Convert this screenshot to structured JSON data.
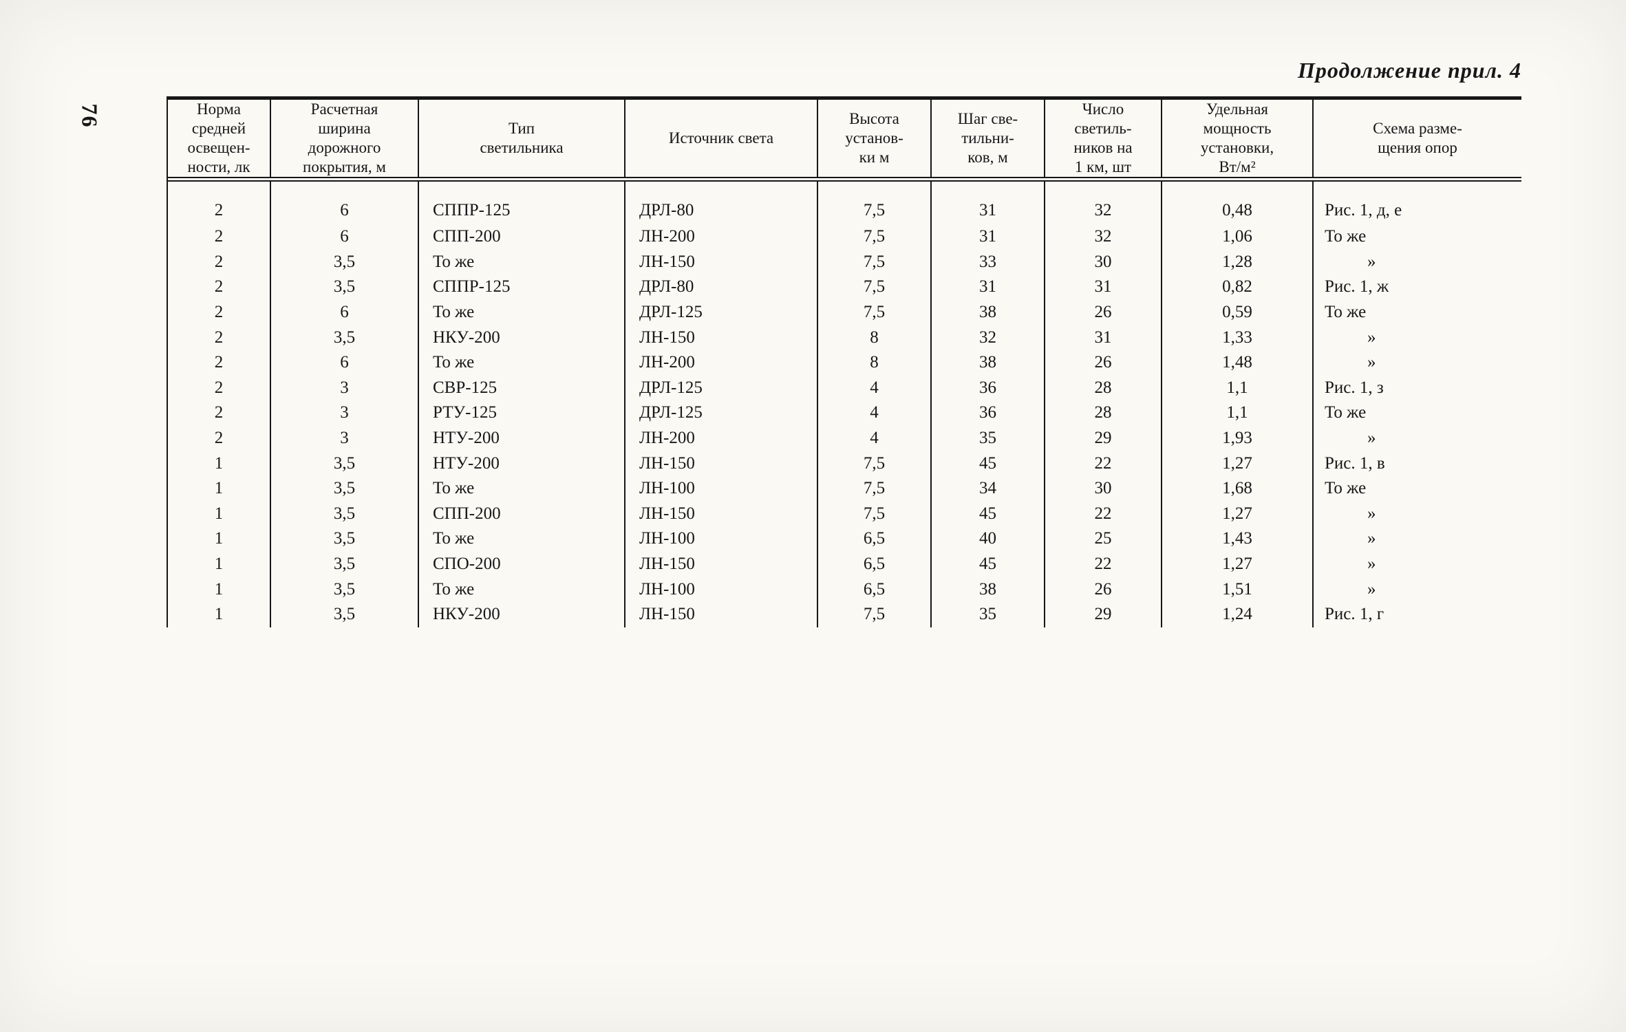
{
  "page": {
    "number": "76",
    "continuation_note": "Продолжение прил. 4"
  },
  "table": {
    "headers": [
      "Норма\nсредней\nосвещен-\nности, лк",
      "Расчетная\nширина\nдорожного\nпокрытия, м",
      "Тип\nсветильника",
      "Источник света",
      "Высота\nустанов-\nки м",
      "Шаг све-\nтильни-\nков, м",
      "Число\nсветиль-\nников на\n1 км, шт",
      "Удельная\nмощность\nустановки,\nВт/м²",
      "Схема разме-\nщения опор"
    ],
    "rows": [
      [
        "2",
        "6",
        "СППР-125",
        "ДРЛ-80",
        "7,5",
        "31",
        "32",
        "0,48",
        "Рис. 1, д, е"
      ],
      [
        "2",
        "6",
        "СПП-200",
        "ЛН-200",
        "7,5",
        "31",
        "32",
        "1,06",
        "То же"
      ],
      [
        "2",
        "3,5",
        "То же",
        "ЛН-150",
        "7,5",
        "33",
        "30",
        "1,28",
        "»"
      ],
      [
        "2",
        "3,5",
        "СППР-125",
        "ДРЛ-80",
        "7,5",
        "31",
        "31",
        "0,82",
        "Рис. 1, ж"
      ],
      [
        "2",
        "6",
        "То же",
        "ДРЛ-125",
        "7,5",
        "38",
        "26",
        "0,59",
        "То же"
      ],
      [
        "2",
        "3,5",
        "НКУ-200",
        "ЛН-150",
        "8",
        "32",
        "31",
        "1,33",
        "»"
      ],
      [
        "2",
        "6",
        "То же",
        "ЛН-200",
        "8",
        "38",
        "26",
        "1,48",
        "»"
      ],
      [
        "2",
        "3",
        "СВР-125",
        "ДРЛ-125",
        "4",
        "36",
        "28",
        "1,1",
        "Рис. 1, з"
      ],
      [
        "2",
        "3",
        "РТУ-125",
        "ДРЛ-125",
        "4",
        "36",
        "28",
        "1,1",
        "То же"
      ],
      [
        "2",
        "3",
        "НТУ-200",
        "ЛН-200",
        "4",
        "35",
        "29",
        "1,93",
        "»"
      ],
      [
        "1",
        "3,5",
        "НТУ-200",
        "ЛН-150",
        "7,5",
        "45",
        "22",
        "1,27",
        "Рис. 1, в"
      ],
      [
        "1",
        "3,5",
        "То же",
        "ЛН-100",
        "7,5",
        "34",
        "30",
        "1,68",
        "То же"
      ],
      [
        "1",
        "3,5",
        "СПП-200",
        "ЛН-150",
        "7,5",
        "45",
        "22",
        "1,27",
        "»"
      ],
      [
        "1",
        "3,5",
        "То же",
        "ЛН-100",
        "6,5",
        "40",
        "25",
        "1,43",
        "»"
      ],
      [
        "1",
        "3,5",
        "СПО-200",
        "ЛН-150",
        "6,5",
        "45",
        "22",
        "1,27",
        "»"
      ],
      [
        "1",
        "3,5",
        "То же",
        "ЛН-100",
        "6,5",
        "38",
        "26",
        "1,51",
        "»"
      ],
      [
        "1",
        "3,5",
        "НКУ-200",
        "ЛН-150",
        "7,5",
        "35",
        "29",
        "1,24",
        "Рис. 1, г"
      ]
    ]
  }
}
